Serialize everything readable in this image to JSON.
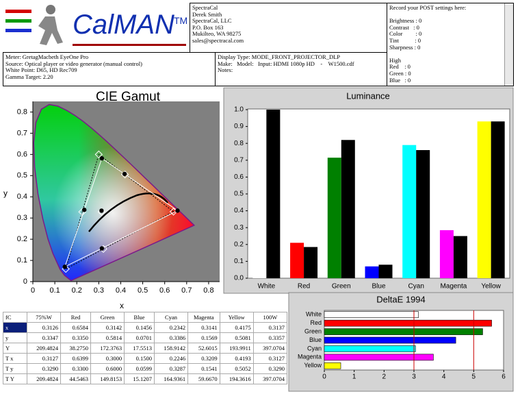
{
  "header": {
    "logo": "CalMAN",
    "logo_tm": "TM",
    "contact": [
      "SpectraCal",
      "Derek Smith",
      "SpectraCal, LLC",
      "P.O. Box 163",
      "Mukilteo, WA 98275",
      "sales@spectracal.com"
    ],
    "post_title": "Record your POST settings here:",
    "post_settings": [
      "Brightness : 0",
      "Contrast   : 0",
      "Color         : 0",
      "Tint           : 0",
      "Sharpness : 0"
    ],
    "post_high": [
      "High",
      "Red    : 0",
      "Green : 0",
      "Blue   : 0"
    ],
    "meter": [
      "Meter: GretagMacbeth EyeOne Pro",
      "Source: Optical player or video generator (manual control)",
      "White Point: D65, HD Rec709",
      "Gamma Target: 2.20"
    ],
    "display": [
      "Display Type: MODE_FRONT_PROJECTOR_DLP",
      "Make:   Model:   Input: HDMI 1080p HD    -    W1500.cdf",
      "Notes:"
    ]
  },
  "chart_data": [
    {
      "type": "scatter",
      "title": "CIE Gamut",
      "x_label": "x",
      "y_label": "y",
      "xlim": [
        0,
        0.85
      ],
      "ylim": [
        0,
        0.85
      ],
      "xticks": [
        0,
        0.1,
        0.2,
        0.3,
        0.4,
        0.5,
        0.6,
        0.7,
        0.8
      ],
      "yticks": [
        0,
        0.1,
        0.2,
        0.3,
        0.4,
        0.5,
        0.6,
        0.7,
        0.8
      ],
      "series": [
        {
          "marker": "diamond",
          "color": "#ffffff",
          "x": [
            0.6399,
            0.3,
            0.15,
            0.2246,
            0.3209,
            0.4193,
            0.3127
          ],
          "y": [
            0.33,
            0.6,
            0.0599,
            0.3287,
            0.1541,
            0.5052,
            0.329
          ]
        },
        {
          "marker": "circle",
          "color": "#000000",
          "x": [
            0.6584,
            0.3142,
            0.1456,
            0.2342,
            0.3141,
            0.4175,
            0.3126
          ],
          "y": [
            0.335,
            0.5814,
            0.0701,
            0.3386,
            0.1569,
            0.5081,
            0.3347
          ]
        }
      ]
    },
    {
      "type": "bar",
      "title": "Luminance",
      "categories": [
        "White",
        "Red",
        "Green",
        "Blue",
        "Cyan",
        "Magenta",
        "Yellow"
      ],
      "ylim": [
        0,
        1
      ],
      "yticks": [
        {
          "value": 0,
          "label": "0.0"
        },
        0.1,
        0.2,
        0.3,
        0.4,
        0.5,
        0.6,
        0.7,
        0.8,
        0.9,
        {
          "value": 1,
          "label": "1.0"
        }
      ],
      "series": [
        {
          "colors": [
            "#ffffff",
            "#ff0000",
            "#008000",
            "#0000ff",
            "#00ffff",
            "#ff00ff",
            "#ffff00"
          ],
          "values": [
            1.0,
            0.21,
            0.715,
            0.07,
            0.79,
            0.285,
            0.93
          ]
        },
        {
          "color": "#000000",
          "values": [
            1.0,
            0.185,
            0.82,
            0.08,
            0.76,
            0.25,
            0.93
          ]
        }
      ]
    },
    {
      "type": "hbar",
      "title": "DeltaE 1994",
      "categories": [
        "White",
        "Red",
        "Green",
        "Blue",
        "Cyan",
        "Magenta",
        "Yellow"
      ],
      "colors": [
        "#ffffff",
        "#ff0000",
        "#008000",
        "#0000ff",
        "#00ffff",
        "#ff00ff",
        "#ffff00"
      ],
      "values": [
        3.15,
        5.6,
        5.3,
        4.4,
        3.05,
        3.65,
        0.55
      ],
      "xlim": [
        0,
        6
      ],
      "xticks": [
        0,
        1,
        2,
        3,
        4,
        5,
        6
      ],
      "reference_lines": [
        3,
        5
      ],
      "reference_color": "#cc0000"
    }
  ],
  "table": {
    "header": [
      "fC",
      "75%W",
      "Red",
      "Green",
      "Blue",
      "Cyan",
      "Magenta",
      "Yellow",
      "100W"
    ],
    "rows": [
      [
        "x",
        "0.3126",
        "0.6584",
        "0.3142",
        "0.1456",
        "0.2342",
        "0.3141",
        "0.4175",
        "0.3137"
      ],
      [
        "y",
        "0.3347",
        "0.3350",
        "0.5814",
        "0.0701",
        "0.3386",
        "0.1569",
        "0.5081",
        "0.3357"
      ],
      [
        "Y",
        "209.4824",
        "38.2750",
        "172.3763",
        "17.5513",
        "158.9142",
        "52.6015",
        "193.9911",
        "397.0704"
      ],
      [
        "T x",
        "0.3127",
        "0.6399",
        "0.3000",
        "0.1500",
        "0.2246",
        "0.3209",
        "0.4193",
        "0.3127"
      ],
      [
        "T y",
        "0.3290",
        "0.3300",
        "0.6000",
        "0.0599",
        "0.3287",
        "0.1541",
        "0.5052",
        "0.3290"
      ],
      [
        "T Y",
        "209.4824",
        "44.5463",
        "149.8153",
        "15.1207",
        "164.9361",
        "59.6670",
        "194.3616",
        "397.0704"
      ]
    ]
  }
}
